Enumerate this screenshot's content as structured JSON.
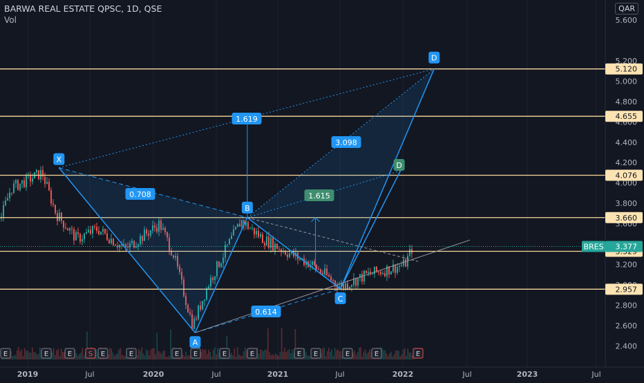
{
  "header": {
    "title": "BARWA REAL ESTATE QPSC, 1D, QSE",
    "subtitle": "Vol"
  },
  "currency": "QAR",
  "colors": {
    "background": "#131722",
    "grid": "#1e222d",
    "text": "#b2b5be",
    "up": "#26a69a",
    "down": "#ef5350",
    "pattern": "#2196f3",
    "pattern_fill": "#2196f3",
    "level_line": "#f9d89c",
    "level_box": "#fce3b2",
    "ratio_green": "#3e8e6f",
    "price_tag": "#26a69a",
    "trendline": "#9598a1"
  },
  "chart_data": {
    "type": "candlestick",
    "symbol": "BRES",
    "last_price": "3.377",
    "x_axis": {
      "labels": [
        "2019",
        "Jul",
        "2020",
        "Jul",
        "2021",
        "Jul",
        "2022",
        "Jul",
        "2023",
        "Jul"
      ]
    },
    "y_axis": {
      "min": 2.25,
      "max": 5.7,
      "ticks": [
        "5.600",
        "5.200",
        "5.000",
        "4.800",
        "4.600",
        "4.400",
        "4.200",
        "4.000",
        "3.800",
        "3.600",
        "3.400",
        "3.200",
        "3.000",
        "2.800",
        "2.600",
        "2.400"
      ]
    },
    "levels": [
      "5.120",
      "4.655",
      "4.076",
      "3.660",
      "3.329",
      "2.957"
    ],
    "xabcd": {
      "points": [
        {
          "label": "X",
          "date": "2019-04",
          "price": 4.15
        },
        {
          "label": "A",
          "date": "2020-05",
          "price": 2.53
        },
        {
          "label": "B",
          "date": "2020-10",
          "price": 3.66
        },
        {
          "label": "C",
          "date": "2021-07",
          "price": 2.96
        },
        {
          "label": "D",
          "date": "2022-04",
          "price": 5.12
        }
      ],
      "alt_d_label": "D",
      "ratios": [
        "0.708",
        "1.619",
        "0.614",
        "3.098",
        "1.615"
      ]
    },
    "earnings_markers": [
      "E",
      "E",
      "E",
      "S",
      "E",
      "E",
      "E",
      "E",
      "E",
      "E",
      "E",
      "E",
      "E",
      "E",
      "E"
    ]
  }
}
